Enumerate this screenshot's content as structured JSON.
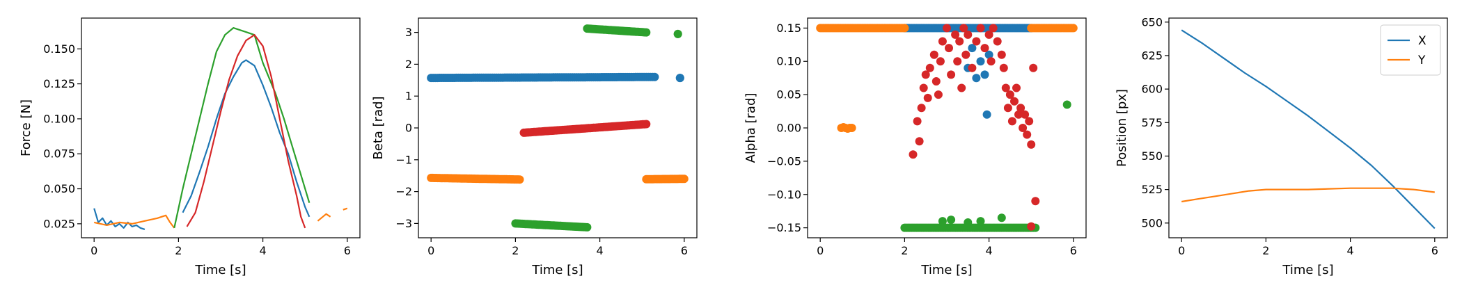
{
  "colors": {
    "c0": "#1f77b4",
    "c1": "#ff7f0e",
    "c2": "#2ca02c",
    "c3": "#d62728"
  },
  "chart_data": [
    {
      "type": "line",
      "xlabel": "Time [s]",
      "ylabel": "Force [N]",
      "xlim": [
        -0.3,
        6.3
      ],
      "ylim": [
        0.015,
        0.172
      ],
      "xticks": [
        0,
        2,
        4,
        6
      ],
      "yticks": [
        0.025,
        0.05,
        0.075,
        0.1,
        0.125,
        0.15
      ],
      "ytick_labels": [
        "0.025",
        "0.050",
        "0.075",
        "0.100",
        "0.125",
        "0.150"
      ],
      "grid": false,
      "series": [
        {
          "color": "c0",
          "segments": [
            [
              [
                0.0,
                0.036
              ],
              [
                0.1,
                0.026
              ],
              [
                0.2,
                0.029
              ],
              [
                0.3,
                0.024
              ],
              [
                0.4,
                0.027
              ],
              [
                0.5,
                0.023
              ],
              [
                0.6,
                0.025
              ],
              [
                0.7,
                0.022
              ],
              [
                0.8,
                0.026
              ],
              [
                0.9,
                0.023
              ],
              [
                1.0,
                0.024
              ],
              [
                1.1,
                0.022
              ],
              [
                1.2,
                0.021
              ]
            ],
            [
              [
                2.1,
                0.033
              ],
              [
                2.3,
                0.045
              ],
              [
                2.5,
                0.062
              ],
              [
                2.7,
                0.08
              ],
              [
                2.9,
                0.1
              ],
              [
                3.1,
                0.118
              ],
              [
                3.3,
                0.13
              ],
              [
                3.5,
                0.14
              ],
              [
                3.6,
                0.142
              ],
              [
                3.8,
                0.138
              ],
              [
                4.0,
                0.124
              ],
              [
                4.2,
                0.108
              ],
              [
                4.4,
                0.09
              ],
              [
                4.6,
                0.075
              ],
              [
                4.8,
                0.055
              ],
              [
                5.0,
                0.037
              ],
              [
                5.1,
                0.03
              ]
            ]
          ]
        },
        {
          "color": "c1",
          "segments": [
            [
              [
                0.0,
                0.026
              ],
              [
                0.3,
                0.024
              ],
              [
                0.6,
                0.026
              ],
              [
                0.9,
                0.025
              ],
              [
                1.2,
                0.027
              ],
              [
                1.5,
                0.029
              ],
              [
                1.7,
                0.031
              ],
              [
                1.8,
                0.026
              ],
              [
                1.9,
                0.022
              ]
            ],
            [
              [
                5.3,
                0.027
              ],
              [
                5.5,
                0.032
              ],
              [
                5.6,
                0.03
              ]
            ],
            [
              [
                5.9,
                0.035
              ],
              [
                6.0,
                0.036
              ]
            ]
          ]
        },
        {
          "color": "c2",
          "segments": [
            [
              [
                1.9,
                0.022
              ],
              [
                2.1,
                0.05
              ],
              [
                2.3,
                0.075
              ],
              [
                2.5,
                0.1
              ],
              [
                2.7,
                0.125
              ],
              [
                2.9,
                0.148
              ],
              [
                3.1,
                0.16
              ],
              [
                3.3,
                0.165
              ],
              [
                3.6,
                0.162
              ],
              [
                3.8,
                0.16
              ],
              [
                4.0,
                0.14
              ],
              [
                4.3,
                0.118
              ],
              [
                4.5,
                0.1
              ],
              [
                4.7,
                0.08
              ],
              [
                4.9,
                0.06
              ],
              [
                5.1,
                0.04
              ]
            ]
          ]
        },
        {
          "color": "c3",
          "segments": [
            [
              [
                2.2,
                0.023
              ],
              [
                2.4,
                0.033
              ],
              [
                2.6,
                0.055
              ],
              [
                2.8,
                0.08
              ],
              [
                3.0,
                0.105
              ],
              [
                3.2,
                0.128
              ],
              [
                3.4,
                0.145
              ],
              [
                3.6,
                0.156
              ],
              [
                3.8,
                0.16
              ],
              [
                4.0,
                0.152
              ],
              [
                4.2,
                0.13
              ],
              [
                4.4,
                0.1
              ],
              [
                4.6,
                0.07
              ],
              [
                4.8,
                0.045
              ],
              [
                4.9,
                0.03
              ],
              [
                5.0,
                0.022
              ]
            ]
          ]
        }
      ]
    },
    {
      "type": "scatter",
      "xlabel": "Time [s]",
      "ylabel": "Beta [rad]",
      "xlim": [
        -0.3,
        6.3
      ],
      "ylim": [
        -3.45,
        3.45
      ],
      "xticks": [
        0,
        2,
        4,
        6
      ],
      "yticks": [
        -3,
        -2,
        -1,
        0,
        1,
        2,
        3
      ],
      "ytick_labels": [
        "−3",
        "−2",
        "−1",
        "0",
        "1",
        "2",
        "3"
      ],
      "grid": false,
      "series": [
        {
          "color": "c0",
          "runs": [
            {
              "t0": 0.0,
              "t1": 5.3,
              "y0": 1.57,
              "y1": 1.6,
              "step": 0.05
            },
            {
              "t0": 5.9,
              "t1": 5.9,
              "y0": 1.57,
              "y1": 1.57,
              "step": 0.05
            }
          ]
        },
        {
          "color": "c1",
          "runs": [
            {
              "t0": 0.0,
              "t1": 2.1,
              "y0": -1.57,
              "y1": -1.62,
              "step": 0.04
            },
            {
              "t0": 5.1,
              "t1": 6.0,
              "y0": -1.61,
              "y1": -1.6,
              "step": 0.04
            }
          ]
        },
        {
          "color": "c2",
          "runs": [
            {
              "t0": 2.0,
              "t1": 3.7,
              "y0": -3.0,
              "y1": -3.12,
              "step": 0.04
            },
            {
              "t0": 3.7,
              "t1": 5.1,
              "y0": 3.12,
              "y1": 3.0,
              "step": 0.04
            },
            {
              "t0": 5.85,
              "t1": 5.85,
              "y0": 2.95,
              "y1": 2.95,
              "step": 0.05
            }
          ]
        },
        {
          "color": "c3",
          "runs": [
            {
              "t0": 2.2,
              "t1": 5.1,
              "y0": -0.15,
              "y1": 0.12,
              "step": 0.04
            }
          ]
        }
      ]
    },
    {
      "type": "scatter",
      "xlabel": "Time [s]",
      "ylabel": "Alpha [rad]",
      "xlim": [
        -0.3,
        6.3
      ],
      "ylim": [
        -0.165,
        0.165
      ],
      "xticks": [
        0,
        2,
        4,
        6
      ],
      "yticks": [
        -0.15,
        -0.1,
        -0.05,
        0,
        0.05,
        0.1,
        0.15
      ],
      "ytick_labels": [
        "−0.15",
        "−0.10",
        "−0.05",
        "0.00",
        "0.05",
        "0.10",
        "0.15"
      ],
      "grid": false,
      "series": [
        {
          "color": "c0",
          "runs": [
            {
              "t0": 2.0,
              "t1": 5.0,
              "y0": 0.15,
              "y1": 0.15,
              "step": 0.04
            }
          ],
          "points": [
            [
              3.6,
              0.12
            ],
            [
              3.8,
              0.1
            ],
            [
              3.9,
              0.08
            ],
            [
              4.0,
              0.11
            ],
            [
              3.5,
              0.09
            ],
            [
              3.7,
              0.075
            ],
            [
              3.95,
              0.02
            ]
          ]
        },
        {
          "color": "c1",
          "runs": [
            {
              "t0": 0.0,
              "t1": 2.0,
              "y0": 0.15,
              "y1": 0.15,
              "step": 0.04
            },
            {
              "t0": 5.0,
              "t1": 6.0,
              "y0": 0.15,
              "y1": 0.15,
              "step": 0.04
            }
          ],
          "points": [
            [
              0.5,
              0.0
            ],
            [
              0.6,
              0.0
            ],
            [
              0.7,
              0.0
            ],
            [
              0.75,
              0.0
            ],
            [
              0.55,
              0.001
            ],
            [
              0.65,
              -0.001
            ]
          ]
        },
        {
          "color": "c2",
          "runs": [
            {
              "t0": 2.0,
              "t1": 5.1,
              "y0": -0.15,
              "y1": -0.15,
              "step": 0.04
            }
          ],
          "points": [
            [
              2.9,
              -0.14
            ],
            [
              3.1,
              -0.138
            ],
            [
              3.5,
              -0.142
            ],
            [
              3.8,
              -0.14
            ],
            [
              4.3,
              -0.135
            ],
            [
              5.85,
              0.035
            ]
          ]
        },
        {
          "color": "c3",
          "points": [
            [
              2.2,
              -0.04
            ],
            [
              2.3,
              0.01
            ],
            [
              2.35,
              -0.02
            ],
            [
              2.4,
              0.03
            ],
            [
              2.45,
              0.06
            ],
            [
              2.5,
              0.08
            ],
            [
              2.55,
              0.045
            ],
            [
              2.6,
              0.09
            ],
            [
              2.7,
              0.11
            ],
            [
              2.75,
              0.07
            ],
            [
              2.8,
              0.05
            ],
            [
              2.85,
              0.1
            ],
            [
              2.9,
              0.13
            ],
            [
              3.0,
              0.15
            ],
            [
              3.05,
              0.12
            ],
            [
              3.1,
              0.08
            ],
            [
              3.2,
              0.14
            ],
            [
              3.25,
              0.1
            ],
            [
              3.3,
              0.13
            ],
            [
              3.35,
              0.06
            ],
            [
              3.4,
              0.15
            ],
            [
              3.45,
              0.11
            ],
            [
              3.5,
              0.14
            ],
            [
              3.6,
              0.09
            ],
            [
              3.7,
              0.13
            ],
            [
              3.8,
              0.15
            ],
            [
              3.9,
              0.12
            ],
            [
              4.0,
              0.14
            ],
            [
              4.05,
              0.1
            ],
            [
              4.1,
              0.15
            ],
            [
              4.2,
              0.13
            ],
            [
              4.3,
              0.11
            ],
            [
              4.35,
              0.09
            ],
            [
              4.4,
              0.06
            ],
            [
              4.45,
              0.03
            ],
            [
              4.5,
              0.05
            ],
            [
              4.55,
              0.01
            ],
            [
              4.6,
              0.04
            ],
            [
              4.65,
              0.06
            ],
            [
              4.7,
              0.02
            ],
            [
              4.75,
              0.03
            ],
            [
              4.8,
              0.0
            ],
            [
              4.85,
              0.02
            ],
            [
              4.9,
              -0.01
            ],
            [
              4.95,
              0.01
            ],
            [
              5.0,
              -0.025
            ],
            [
              5.05,
              0.09
            ],
            [
              5.1,
              -0.11
            ],
            [
              5.0,
              -0.148
            ]
          ]
        }
      ]
    },
    {
      "type": "line",
      "xlabel": "Time [s]",
      "ylabel": "Position [px]",
      "xlim": [
        -0.3,
        6.3
      ],
      "ylim": [
        489,
        653
      ],
      "xticks": [
        0,
        2,
        4,
        6
      ],
      "yticks": [
        500,
        525,
        550,
        575,
        600,
        625,
        650
      ],
      "ytick_labels": [
        "500",
        "525",
        "550",
        "575",
        "600",
        "625",
        "650"
      ],
      "grid": false,
      "legend": "top-right",
      "series": [
        {
          "name": "X",
          "color": "c0",
          "segments": [
            [
              [
                0.0,
                644
              ],
              [
                0.5,
                634
              ],
              [
                1.0,
                623
              ],
              [
                1.5,
                612
              ],
              [
                2.0,
                602
              ],
              [
                2.5,
                591
              ],
              [
                3.0,
                580
              ],
              [
                3.5,
                568
              ],
              [
                4.0,
                556
              ],
              [
                4.5,
                543
              ],
              [
                5.0,
                528
              ],
              [
                5.5,
                512
              ],
              [
                6.0,
                496
              ]
            ]
          ]
        },
        {
          "name": "Y",
          "color": "c1",
          "segments": [
            [
              [
                0.0,
                516
              ],
              [
                0.4,
                518
              ],
              [
                0.8,
                520
              ],
              [
                1.2,
                522
              ],
              [
                1.6,
                524
              ],
              [
                2.0,
                525
              ],
              [
                3.0,
                525
              ],
              [
                4.0,
                526
              ],
              [
                5.0,
                526
              ],
              [
                5.5,
                525
              ],
              [
                6.0,
                523
              ]
            ]
          ]
        }
      ]
    }
  ]
}
